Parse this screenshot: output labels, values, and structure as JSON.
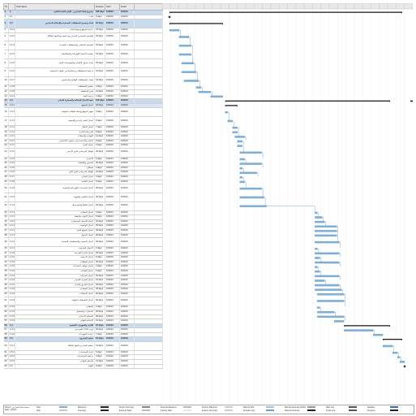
{
  "columns": {
    "id": "ID",
    "mode": "",
    "name": "Task Name",
    "duration": "Duration",
    "start": "Start",
    "finish": "Finish",
    "predecessors": ""
  },
  "rows": [
    {
      "id": "1",
      "wbs": "1",
      "name": "مشروع إنشاء المدارس - الإدارة العامة للتعليم",
      "duration": "520 days",
      "start": "1/02/13",
      "finish": "1/04/13",
      "summary": true
    },
    {
      "id": "2",
      "wbs": "1.1",
      "name": "البدء",
      "duration": "0 days",
      "start": "1/02/13",
      "finish": "1/02/13"
    },
    {
      "id": "3",
      "wbs": "1.2",
      "name": "إعداد وتصميم المخططات المعمارية والإنشائية للمدارس",
      "duration": "81 days",
      "start": "1/02/13",
      "finish": "4/03/13",
      "summary": true,
      "tall": true
    },
    {
      "id": "4",
      "wbs": "1.2.1",
      "name": "دراسة الموقع وجمع البيانات",
      "duration": "15 days",
      "start": "1/02/13",
      "finish": "1/02/13"
    },
    {
      "id": "5",
      "wbs": "1.2.2",
      "name": "التصميم المعماري المبدئي ومراجعته مع الجهة المالكة",
      "duration": "15 days",
      "start": "1/02/13",
      "finish": "1/02/13",
      "tall": true
    },
    {
      "id": "6",
      "wbs": "1.2.3",
      "name": "التصميم الإنشائي والمخططات التنفيذية",
      "duration": "15 days",
      "start": "1/02/13",
      "finish": "1/02/13",
      "tall": true
    },
    {
      "id": "7",
      "wbs": "1.2.4",
      "name": "تصميم الأعمال الكهربائية والميكانيكية",
      "duration": "15 days",
      "start": "1/02/13",
      "finish": "1/02/13",
      "tall": true
    },
    {
      "id": "8",
      "wbs": "1.2.5",
      "name": "إعداد جداول الكميات والمواصفات الفنية",
      "duration": "15 days",
      "start": "1/02/13",
      "finish": "1/02/13",
      "tall": true
    },
    {
      "id": "9",
      "wbs": "1.2.6",
      "name": "مراجعة المخططات واعتمادها من الجهات المختصة",
      "duration": "15 days",
      "start": "1/02/13",
      "finish": "1/02/13",
      "tall": true
    },
    {
      "id": "10",
      "wbs": "1.2.7",
      "name": "إصدار المخططات النهائية والتراخيص",
      "duration": "15 days",
      "start": "1/02/13",
      "finish": "1/02/13",
      "tall": true
    },
    {
      "id": "11",
      "wbs": "1.2.8",
      "name": "تسليم المخططات",
      "duration": "3 days",
      "start": "1/02/13",
      "finish": "1/02/13"
    },
    {
      "id": "12",
      "wbs": "1.2.9",
      "name": "طرح المناقصة",
      "duration": "21 days",
      "start": "1/02/13",
      "finish": "1/02/13"
    },
    {
      "id": "13",
      "wbs": "1.2.10",
      "name": "ترسية العقد",
      "duration": "3 days",
      "start": "1/02/13",
      "finish": "1/02/13"
    },
    {
      "id": "14",
      "wbs": "1.3",
      "name": "تنفيذ الأعمال الإنشائية والمعمارية للمباني",
      "duration": "105 days",
      "start": "1/03/13",
      "finish": "1/04/13",
      "summary": true
    },
    {
      "id": "15",
      "wbs": "1.3.1",
      "name": "أعمال الموقع",
      "duration": "18 days",
      "start": "1/03/13",
      "finish": "1/03/13",
      "sel": true
    },
    {
      "id": "16",
      "wbs": "1.3.1.1",
      "name": "تجهيز الموقع وإنشاء المكاتب المؤقتة",
      "duration": "3 days",
      "start": "1/03/13",
      "finish": "1/03/13",
      "tall": true
    },
    {
      "id": "17",
      "wbs": "1.3.1.2",
      "name": "أعمال الحفر والردم والتسوية",
      "duration": "8 days",
      "start": "1/03/13",
      "finish": "1/03/13",
      "tall": true
    },
    {
      "id": "18",
      "wbs": "1.3.1.3",
      "name": "أعمال الإحلال",
      "duration": "7 days",
      "start": "1/03/13",
      "finish": "1/03/13"
    },
    {
      "id": "19",
      "wbs": "1.3.1.4",
      "name": "الخرسانة العادية",
      "duration": "5 days",
      "start": "1/03/13",
      "finish": "1/03/13"
    },
    {
      "id": "20",
      "wbs": "1.3.1.5",
      "name": "القواعد والسملات",
      "duration": "14 days",
      "start": "1/03/13",
      "finish": "1/03/13"
    },
    {
      "id": "21",
      "wbs": "1.3.1.6",
      "name": "الرقاب والأعمدة حتى منسوب التأسيس",
      "duration": "5 days",
      "start": "1/03/13",
      "finish": "1/03/13"
    },
    {
      "id": "22",
      "wbs": "1.3.1.7",
      "name": "أعمال العزل",
      "duration": "3 days",
      "start": "1/03/13",
      "finish": "1/03/13"
    },
    {
      "id": "23",
      "wbs": "1.3.2",
      "name": "الهيكل الخرساني للدور الأرضي",
      "duration": "30 days",
      "start": "1/03/13",
      "finish": "1/03/13",
      "tall": true
    },
    {
      "id": "24",
      "wbs": "1.3.3",
      "name": "الأعمدة",
      "duration": "5 days",
      "start": "1/03/13",
      "finish": "1/03/13"
    },
    {
      "id": "25",
      "wbs": "1.3.4",
      "name": "الجسور والبلاطات",
      "duration": "30 days",
      "start": "1/03/13",
      "finish": "1/03/13"
    },
    {
      "id": "26",
      "wbs": "1.3.5",
      "name": "السلالم",
      "duration": "4 days",
      "start": "1/03/13",
      "finish": "1/03/13"
    },
    {
      "id": "27",
      "wbs": "1.3.6",
      "name": "الهيكل الخرساني للدور الأول",
      "duration": "21 days",
      "start": "1/03/13",
      "finish": "1/03/13"
    },
    {
      "id": "28",
      "wbs": "1.3.7",
      "name": "أعمال المباني",
      "duration": "3 days",
      "start": "1/03/13",
      "finish": "1/03/13"
    },
    {
      "id": "29",
      "wbs": "1.3.8",
      "name": "أعمال اللياسة",
      "duration": "5 days",
      "start": "1/03/13",
      "finish": "1/03/13"
    },
    {
      "id": "30",
      "wbs": "1.3.9",
      "name": "أعمال التمديدات الكهربائية والصحية",
      "duration": "28 days",
      "start": "1/03/13",
      "finish": "1/04/13",
      "tall": true
    },
    {
      "id": "31",
      "wbs": "1.3.10",
      "name": "أعمال التكييف والتهوية",
      "duration": "30 days",
      "start": "1/03/13",
      "finish": "1/04/13",
      "tall": true
    },
    {
      "id": "32",
      "wbs": "1.3.11",
      "name": "أعمال البلاط والسيراميك",
      "duration": "30 days",
      "start": "1/03/13",
      "finish": "1/04/13",
      "tall": true
    },
    {
      "id": "33",
      "wbs": "1.3.12",
      "name": "أعمال الدهانات",
      "duration": "3 days",
      "start": "1/03/13",
      "finish": "1/04/13"
    },
    {
      "id": "34",
      "wbs": "1.3.13",
      "name": "أعمال الأبواب والنوافذ",
      "duration": "8 days",
      "start": "1/03/13",
      "finish": "1/04/13"
    },
    {
      "id": "35",
      "wbs": "1.3.14",
      "name": "أعمال الأسقف المستعارة",
      "duration": "10 days",
      "start": "1/03/13",
      "finish": "1/04/13"
    },
    {
      "id": "36",
      "wbs": "1.3.15",
      "name": "أعمال الواجهات",
      "duration": "30 days",
      "start": "1/03/13",
      "finish": "1/04/13"
    },
    {
      "id": "37",
      "wbs": "1.3.16",
      "name": "أعمال الموقع العام",
      "duration": "30 days",
      "start": "1/03/13",
      "finish": "1/04/13"
    },
    {
      "id": "38",
      "wbs": "1.3.17",
      "name": "أعمال الأسوار",
      "duration": "30 days",
      "start": "1/03/13",
      "finish": "1/04/13"
    },
    {
      "id": "39",
      "wbs": "1.3.18",
      "name": "أعمال التشجير والمسطحات الخضراء",
      "duration": "30 days",
      "start": "1/03/13",
      "finish": "1/04/13",
      "tall": true
    },
    {
      "id": "40",
      "wbs": "1.3.19",
      "name": "الأعمال الخارجية",
      "duration": "3 days",
      "start": "1/03/13",
      "finish": "1/04/13"
    },
    {
      "id": "41",
      "wbs": "1.3.20",
      "name": "أعمال الإنارة الخارجية",
      "duration": "30 days",
      "start": "1/03/13",
      "finish": "1/04/13"
    },
    {
      "id": "42",
      "wbs": "1.3.21",
      "name": "أعمال الأرصفة",
      "duration": "5 days",
      "start": "1/03/13",
      "finish": "1/04/13"
    },
    {
      "id": "43",
      "wbs": "1.3.22",
      "name": "أعمال المظلات",
      "duration": "30 days",
      "start": "1/03/13",
      "finish": "1/04/13"
    },
    {
      "id": "44",
      "wbs": "1.3.23",
      "name": "أعمال مواقف السيارات",
      "duration": "3 days",
      "start": "1/03/13",
      "finish": "1/04/13"
    },
    {
      "id": "45",
      "wbs": "1.3.24",
      "name": "أعمال الملاعب",
      "duration": "5 days",
      "start": "1/03/13",
      "finish": "1/04/13"
    },
    {
      "id": "46",
      "wbs": "1.3.25",
      "name": "أعمال الخزانات",
      "duration": "30 days",
      "start": "1/03/13",
      "finish": "1/04/13"
    },
    {
      "id": "47",
      "wbs": "1.3.26",
      "name": "أعمال الصرف الصحي",
      "duration": "10 days",
      "start": "1/03/13",
      "finish": "1/04/13"
    },
    {
      "id": "48",
      "wbs": "1.3.27",
      "name": "أعمال الحريق والإنذار",
      "duration": "30 days",
      "start": "1/03/13",
      "finish": "1/04/13"
    },
    {
      "id": "49",
      "wbs": "1.3.28",
      "name": "أعمال المصاعد",
      "duration": "30 days",
      "start": "1/03/13",
      "finish": "1/04/13"
    },
    {
      "id": "50",
      "wbs": "1.3.29",
      "name": "أعمال الاتصالات",
      "duration": "30 days",
      "start": "1/03/13",
      "finish": "1/04/13"
    },
    {
      "id": "51",
      "wbs": "1.3.30",
      "name": "أعمال التشطيبات النهائية",
      "duration": "30 days",
      "start": "1/03/13",
      "finish": "1/04/13",
      "tall": true
    },
    {
      "id": "52",
      "wbs": "1.3.31",
      "name": "التنظيف",
      "duration": "3 days",
      "start": "1/03/13",
      "finish": "1/04/13"
    },
    {
      "id": "53",
      "wbs": "1.3.32",
      "name": "الاختبارات والتشغيل",
      "duration": "18 days",
      "start": "1/03/13",
      "finish": "1/04/13"
    },
    {
      "id": "54",
      "wbs": "1.3.33",
      "name": "الاستلام الابتدائي",
      "duration": "30 days",
      "start": "1/03/13",
      "finish": "1/04/13"
    },
    {
      "id": "55",
      "wbs": "1.3.34",
      "name": "الاستلام النهائي",
      "duration": "10 days",
      "start": "1/04/13",
      "finish": "1/04/13"
    },
    {
      "id": "56",
      "wbs": "1.4",
      "name": "التأثيث والتجهيزات التعليمية",
      "duration": "27 days",
      "start": "1/04/13",
      "finish": "1/04/13",
      "summary": true
    },
    {
      "id": "57",
      "wbs": "1.4.1",
      "name": "توريد الأثاث المدرسي",
      "duration": "20 days",
      "start": "1/04/13",
      "finish": "1/04/13"
    },
    {
      "id": "58",
      "wbs": "1.4.2",
      "name": "تركيب التجهيزات",
      "duration": "7 days",
      "start": "1/04/13",
      "finish": "1/04/13"
    },
    {
      "id": "59",
      "wbs": "1.5",
      "name": "تسليم المشروع",
      "duration": "15 days",
      "start": "1/04/13",
      "finish": "1/04/13",
      "summary": true
    },
    {
      "id": "60",
      "wbs": "1.5.1",
      "name": "تسليم المدارس للجهة المالكة",
      "duration": "13 days",
      "start": "1/04/13",
      "finish": "1/04/13",
      "tall": true
    },
    {
      "id": "61",
      "wbs": "1.5.2",
      "name": "إعداد المستندات",
      "duration": "5 days",
      "start": "1/04/13",
      "finish": "1/04/13"
    },
    {
      "id": "62",
      "wbs": "1.5.3",
      "name": "مراجعة المستندات",
      "duration": "3 days",
      "start": "1/04/13",
      "finish": "1/04/13"
    },
    {
      "id": "63",
      "wbs": "1.5.4",
      "name": "التسليم النهائي",
      "duration": "21 days",
      "start": "1/04/13",
      "finish": "1/04/13"
    },
    {
      "id": "64",
      "wbs": "1.6",
      "name": "النهاية",
      "duration": "0 days",
      "start": "1/04/13",
      "finish": "1/04/13"
    }
  ],
  "gantt": {
    "colors": {
      "task": "#7fb0d8",
      "summary": "#1f1f1f",
      "link": "#3a6ea5",
      "grid": "#dddddd"
    },
    "bars": [
      {
        "r": 0,
        "s": 0.02,
        "e": 0.98,
        "t": "sum"
      },
      {
        "r": 1,
        "s": 0.02,
        "e": 0.02,
        "t": "ms"
      },
      {
        "r": 2,
        "s": 0.02,
        "e": 0.24,
        "t": "sum"
      },
      {
        "r": 3,
        "s": 0.02,
        "e": 0.06,
        "t": "task"
      },
      {
        "r": 4,
        "s": 0.06,
        "e": 0.1,
        "t": "task"
      },
      {
        "r": 5,
        "s": 0.06,
        "e": 0.11,
        "t": "task"
      },
      {
        "r": 6,
        "s": 0.06,
        "e": 0.11,
        "t": "task"
      },
      {
        "r": 7,
        "s": 0.07,
        "e": 0.12,
        "t": "task"
      },
      {
        "r": 8,
        "s": 0.07,
        "e": 0.13,
        "t": "task"
      },
      {
        "r": 9,
        "s": 0.08,
        "e": 0.14,
        "t": "task"
      },
      {
        "r": 10,
        "s": 0.13,
        "e": 0.15,
        "t": "task"
      },
      {
        "r": 11,
        "s": 0.14,
        "e": 0.19,
        "t": "task"
      },
      {
        "r": 12,
        "s": 0.19,
        "e": 0.24,
        "t": "task"
      },
      {
        "r": 13,
        "s": 0.25,
        "e": 0.93,
        "t": "sum"
      },
      {
        "r": 14,
        "s": 0.25,
        "e": 0.3,
        "t": "sum"
      },
      {
        "r": 15,
        "s": 0.25,
        "e": 0.26,
        "t": "task"
      },
      {
        "r": 16,
        "s": 0.26,
        "e": 0.28,
        "t": "task"
      },
      {
        "r": 17,
        "s": 0.28,
        "e": 0.3,
        "t": "task"
      },
      {
        "r": 18,
        "s": 0.28,
        "e": 0.3,
        "t": "task"
      },
      {
        "r": 19,
        "s": 0.29,
        "e": 0.33,
        "t": "task"
      },
      {
        "r": 20,
        "s": 0.3,
        "e": 0.32,
        "t": "task"
      },
      {
        "r": 21,
        "s": 0.3,
        "e": 0.32,
        "t": "task"
      },
      {
        "r": 22,
        "s": 0.31,
        "e": 0.4,
        "t": "task"
      },
      {
        "r": 23,
        "s": 0.31,
        "e": 0.33,
        "t": "task"
      },
      {
        "r": 24,
        "s": 0.31,
        "e": 0.4,
        "t": "task"
      },
      {
        "r": 25,
        "s": 0.31,
        "e": 0.32,
        "t": "task"
      },
      {
        "r": 26,
        "s": 0.31,
        "e": 0.38,
        "t": "task"
      },
      {
        "r": 27,
        "s": 0.31,
        "e": 0.32,
        "t": "task"
      },
      {
        "r": 28,
        "s": 0.31,
        "e": 0.33,
        "t": "task"
      },
      {
        "r": 29,
        "s": 0.31,
        "e": 0.4,
        "t": "task"
      },
      {
        "r": 30,
        "s": 0.31,
        "e": 0.41,
        "t": "task"
      },
      {
        "r": 31,
        "s": 0.31,
        "e": 0.42,
        "t": "task"
      },
      {
        "r": 32,
        "s": 0.62,
        "e": 0.63,
        "t": "task"
      },
      {
        "r": 33,
        "s": 0.62,
        "e": 0.65,
        "t": "task"
      },
      {
        "r": 34,
        "s": 0.62,
        "e": 0.66,
        "t": "task"
      },
      {
        "r": 35,
        "s": 0.62,
        "e": 0.71,
        "t": "task"
      },
      {
        "r": 36,
        "s": 0.62,
        "e": 0.71,
        "t": "task"
      },
      {
        "r": 37,
        "s": 0.62,
        "e": 0.71,
        "t": "task"
      },
      {
        "r": 38,
        "s": 0.62,
        "e": 0.72,
        "t": "task"
      },
      {
        "r": 39,
        "s": 0.62,
        "e": 0.63,
        "t": "task"
      },
      {
        "r": 40,
        "s": 0.62,
        "e": 0.72,
        "t": "task"
      },
      {
        "r": 41,
        "s": 0.62,
        "e": 0.64,
        "t": "task"
      },
      {
        "r": 42,
        "s": 0.62,
        "e": 0.72,
        "t": "task"
      },
      {
        "r": 43,
        "s": 0.62,
        "e": 0.63,
        "t": "task"
      },
      {
        "r": 44,
        "s": 0.62,
        "e": 0.64,
        "t": "task"
      },
      {
        "r": 45,
        "s": 0.62,
        "e": 0.72,
        "t": "task"
      },
      {
        "r": 46,
        "s": 0.62,
        "e": 0.66,
        "t": "task"
      },
      {
        "r": 47,
        "s": 0.62,
        "e": 0.72,
        "t": "task"
      },
      {
        "r": 48,
        "s": 0.62,
        "e": 0.73,
        "t": "task"
      },
      {
        "r": 49,
        "s": 0.63,
        "e": 0.74,
        "t": "task"
      },
      {
        "r": 50,
        "s": 0.63,
        "e": 0.74,
        "t": "task"
      },
      {
        "r": 51,
        "s": 0.63,
        "e": 0.64,
        "t": "task"
      },
      {
        "r": 52,
        "s": 0.63,
        "e": 0.7,
        "t": "task"
      },
      {
        "r": 53,
        "s": 0.63,
        "e": 0.74,
        "t": "task"
      },
      {
        "r": 54,
        "s": 0.7,
        "e": 0.74,
        "t": "task"
      },
      {
        "r": 55,
        "s": 0.74,
        "e": 0.93,
        "t": "sum"
      },
      {
        "r": 56,
        "s": 0.74,
        "e": 0.86,
        "t": "task"
      },
      {
        "r": 57,
        "s": 0.86,
        "e": 0.9,
        "t": "task"
      },
      {
        "r": 58,
        "s": 0.9,
        "e": 0.98,
        "t": "sum"
      },
      {
        "r": 59,
        "s": 0.9,
        "e": 0.94,
        "t": "task"
      },
      {
        "r": 60,
        "s": 0.94,
        "e": 0.96,
        "t": "task"
      },
      {
        "r": 61,
        "s": 0.96,
        "e": 0.97,
        "t": "task"
      },
      {
        "r": 62,
        "s": 0.97,
        "e": 0.99,
        "t": "task"
      },
      {
        "r": 63,
        "s": 0.99,
        "e": 0.99,
        "t": "ms"
      }
    ]
  },
  "footer": {
    "project": "Project: نسخة إنشاء المدارس",
    "date": "Date: 1/02/13",
    "legend": [
      "Task",
      "Split",
      "Milestone",
      "Summary",
      "Project Summary",
      "External Tasks",
      "External Milestone",
      "Inactive Task",
      "Inactive Milestone",
      "Inactive Summary",
      "Manual Task",
      "Duration-only",
      "Manual Summary Rollup",
      "Manual Summary",
      "Start-only",
      "Finish-only",
      "Deadline",
      "Progress"
    ]
  }
}
